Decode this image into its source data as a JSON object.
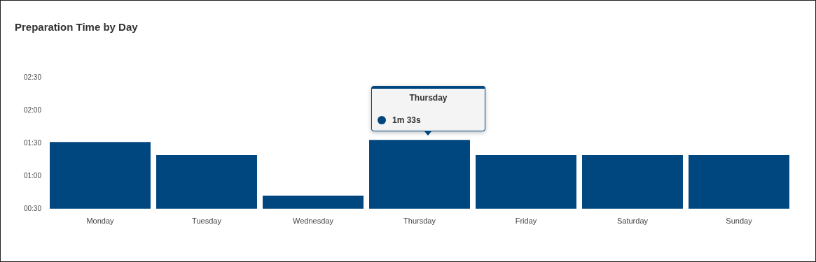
{
  "chart_data": {
    "type": "bar",
    "title": "Preparation Time by Day",
    "categories": [
      "Monday",
      "Tuesday",
      "Wednesday",
      "Thursday",
      "Friday",
      "Saturday",
      "Sunday"
    ],
    "values": [
      91,
      79,
      42,
      93,
      79,
      79,
      79
    ],
    "color": "#00467f",
    "ylim": [
      30,
      150
    ],
    "yticks": [
      {
        "value": 30,
        "label": "00:30"
      },
      {
        "value": 60,
        "label": "01:00"
      },
      {
        "value": 90,
        "label": "01:30"
      },
      {
        "value": 120,
        "label": "02:00"
      },
      {
        "value": 150,
        "label": "02:30"
      }
    ],
    "grid": false,
    "legend": false,
    "annotations": [
      "Thursday",
      "1m 33s"
    ]
  }
}
